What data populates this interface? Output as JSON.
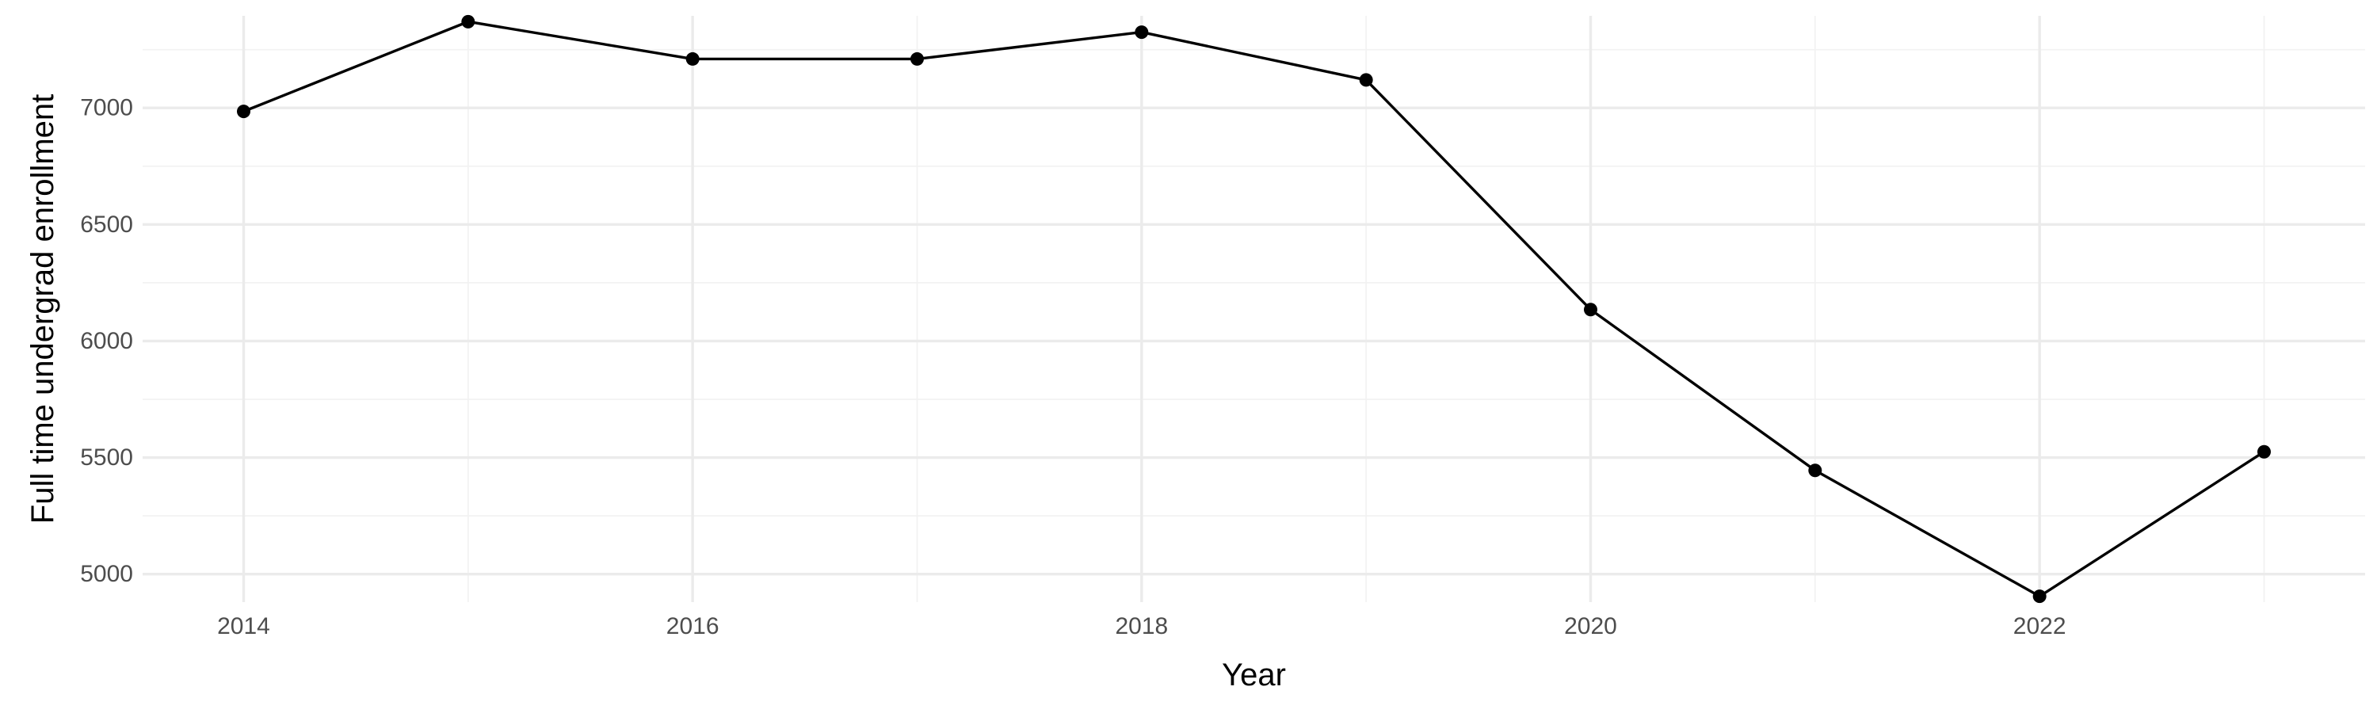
{
  "chart_data": {
    "type": "line",
    "title": "",
    "xlabel": "Year",
    "ylabel": "Full time undergrad enrollment",
    "x": [
      2014,
      2015,
      2016,
      2017,
      2018,
      2019,
      2020,
      2021,
      2022,
      2023
    ],
    "series": [
      {
        "values": [
          6985,
          7370,
          7210,
          7210,
          7325,
          7120,
          6135,
          5445,
          4905,
          5525
        ]
      }
    ],
    "xlim": [
      2013.55,
      2023.45
    ],
    "ylim": [
      4880,
      7395
    ],
    "x_ticks": [
      2014,
      2016,
      2018,
      2020,
      2022
    ],
    "y_ticks": [
      5000,
      5500,
      6000,
      6500,
      7000
    ],
    "x_tick_labels": [
      "2014",
      "2016",
      "2018",
      "2020",
      "2022"
    ],
    "y_tick_labels": [
      "5000",
      "5500",
      "6000",
      "6500",
      "7000"
    ],
    "grid": true,
    "line_color": "#000000",
    "point_color": "#000000"
  }
}
